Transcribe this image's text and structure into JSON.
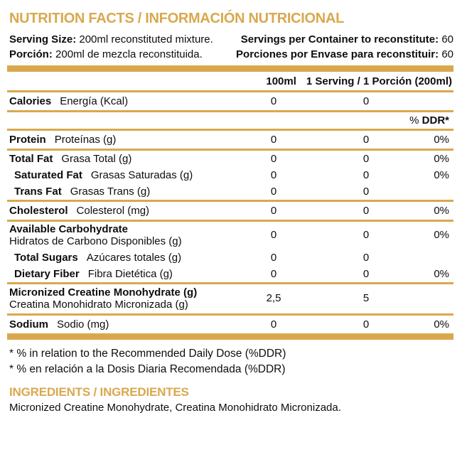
{
  "colors": {
    "gold": "#D9A84E",
    "text": "#0d0d0d"
  },
  "title": "NUTRITION FACTS / INFORMACIÓN NUTRICIONAL",
  "serving_info": {
    "serving_size_label": "Serving Size:",
    "serving_size_value": "200ml reconstituted mixture.",
    "porcion_label": "Porción:",
    "porcion_value": "200ml de mezcla reconstituida.",
    "servings_label": "Servings per Container to reconstitute:",
    "servings_value": "60",
    "porciones_label": "Porciones por Envase para reconstituir:",
    "porciones_value": "60"
  },
  "table": {
    "col_100ml": "100ml",
    "col_serving": "1 Serving / 1 Porción (200ml)",
    "ddr_percent_sign": "%",
    "ddr_label": "DDR*",
    "rows": [
      {
        "en": "Calories",
        "es": "Energía (Kcal)",
        "v100": "0",
        "vserv": "0",
        "ddr": ""
      },
      {
        "en": "Protein",
        "es": "Proteínas (g)",
        "v100": "0",
        "vserv": "0",
        "ddr": "0%"
      },
      {
        "en": "Total Fat",
        "es": "Grasa Total (g)",
        "v100": "0",
        "vserv": "0",
        "ddr": "0%"
      },
      {
        "en": "Saturated Fat",
        "es": "Grasas Saturadas (g)",
        "v100": "0",
        "vserv": "0",
        "ddr": "0%"
      },
      {
        "en": "Trans Fat",
        "es": "Grasas Trans (g)",
        "v100": "0",
        "vserv": "0",
        "ddr": ""
      },
      {
        "en": "Cholesterol",
        "es": "Colesterol (mg)",
        "v100": "0",
        "vserv": "0",
        "ddr": "0%"
      },
      {
        "en": "Available Carbohydrate",
        "es": "Hidratos de Carbono Disponibles (g)",
        "v100": "0",
        "vserv": "0",
        "ddr": "0%"
      },
      {
        "en": "Total Sugars",
        "es": "Azúcares totales (g)",
        "v100": "0",
        "vserv": "0",
        "ddr": ""
      },
      {
        "en": "Dietary Fiber",
        "es": "Fibra Dietética (g)",
        "v100": "0",
        "vserv": "0",
        "ddr": "0%"
      },
      {
        "en": "Micronized Creatine Monohydrate (g)",
        "es": "Creatina Monohidrato Micronizada (g)",
        "v100": "2,5",
        "vserv": "5",
        "ddr": ""
      },
      {
        "en": "Sodium",
        "es": "Sodio (mg)",
        "v100": "0",
        "vserv": "0",
        "ddr": "0%"
      }
    ]
  },
  "footnotes": {
    "en": "* % in relation to the Recommended Daily Dose (%DDR)",
    "es": "* % en relación a la Dosis Diaria Recomendada (%DDR)"
  },
  "ingredients": {
    "heading": "INGREDIENTS / INGREDIENTES",
    "text": "Micronized Creatine Monohydrate, Creatina Monohidrato Micronizada."
  }
}
